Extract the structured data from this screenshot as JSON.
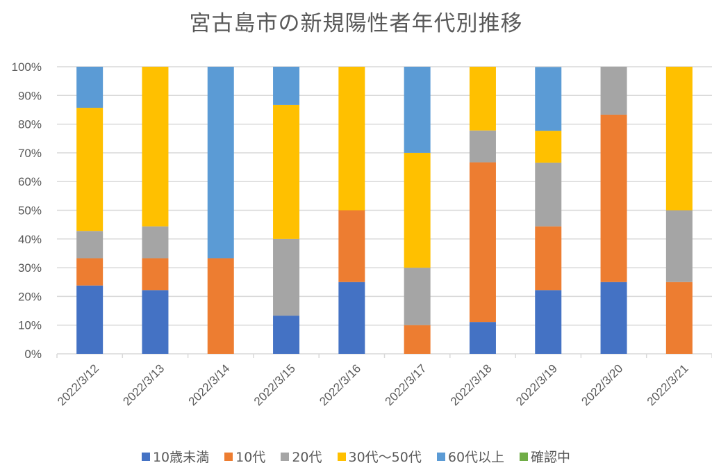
{
  "chart_data": {
    "type": "bar",
    "stacked": "percent",
    "title": "宮古島市の新規陽性者年代別推移",
    "xlabel": "",
    "ylabel": "",
    "ylim": [
      0,
      100
    ],
    "yticks": [
      "0%",
      "10%",
      "20%",
      "30%",
      "40%",
      "50%",
      "60%",
      "70%",
      "80%",
      "90%",
      "100%"
    ],
    "grid": true,
    "legend_position": "bottom",
    "categories": [
      "2022/3/12",
      "2022/3/13",
      "2022/3/14",
      "2022/3/15",
      "2022/3/16",
      "2022/3/17",
      "2022/3/18",
      "2022/3/19",
      "2022/3/20",
      "2022/3/21"
    ],
    "series": [
      {
        "name": "10歳未満",
        "color": "#4472C4",
        "values": [
          23.8,
          22.2,
          0,
          13.3,
          25,
          0,
          11.1,
          22.2,
          25,
          0
        ]
      },
      {
        "name": "10代",
        "color": "#ED7D31",
        "values": [
          9.5,
          11.1,
          33.3,
          0,
          25,
          10,
          55.6,
          22.2,
          58.3,
          25
        ]
      },
      {
        "name": "20代",
        "color": "#A5A5A5",
        "values": [
          9.5,
          11.1,
          0,
          26.7,
          0,
          20,
          11.1,
          22.2,
          16.7,
          25
        ]
      },
      {
        "name": "30代〜50代",
        "color": "#FFC000",
        "values": [
          42.9,
          55.6,
          0,
          46.7,
          50,
          40,
          22.2,
          11.1,
          0,
          50
        ]
      },
      {
        "name": "60代以上",
        "color": "#5B9BD5",
        "values": [
          14.3,
          0,
          66.7,
          13.3,
          0,
          30,
          0,
          22.2,
          0,
          0
        ]
      },
      {
        "name": "確認中",
        "color": "#70AD47",
        "values": [
          0,
          0,
          0,
          0,
          0,
          0,
          0,
          0,
          0,
          0
        ]
      }
    ]
  }
}
